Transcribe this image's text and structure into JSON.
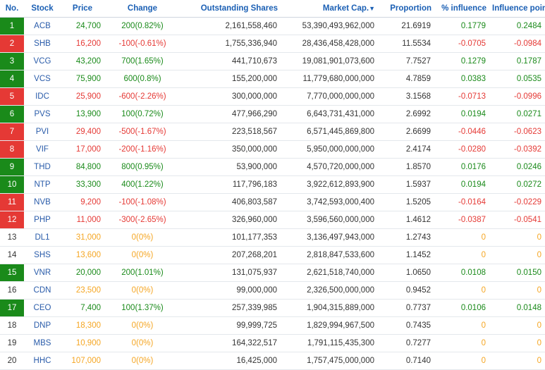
{
  "headers": {
    "no": "No.",
    "stock": "Stock",
    "price": "Price",
    "change": "Change",
    "shares": "Outstanding Shares",
    "market_cap": "Market Cap.",
    "sort_arrow": "▼",
    "proportion": "Proportion",
    "pct_influence": "% influence",
    "influence_points": "Influence points"
  },
  "colors": {
    "up": "#1a8a1a",
    "down": "#e53935",
    "ref": "#f5a623",
    "header": "#1a5fb4"
  },
  "rows": [
    {
      "no": "1",
      "stock": "ACB",
      "price": "24,700",
      "change": "200(0.82%)",
      "shares": "2,161,558,460",
      "market_cap": "53,390,493,962,000",
      "proportion": "21.6919",
      "pct_influence": "0.1779",
      "influence_points": "0.2484",
      "status": "up"
    },
    {
      "no": "2",
      "stock": "SHB",
      "price": "16,200",
      "change": "-100(-0.61%)",
      "shares": "1,755,336,940",
      "market_cap": "28,436,458,428,000",
      "proportion": "11.5534",
      "pct_influence": "-0.0705",
      "influence_points": "-0.0984",
      "status": "down"
    },
    {
      "no": "3",
      "stock": "VCG",
      "price": "43,200",
      "change": "700(1.65%)",
      "shares": "441,710,673",
      "market_cap": "19,081,901,073,600",
      "proportion": "7.7527",
      "pct_influence": "0.1279",
      "influence_points": "0.1787",
      "status": "up"
    },
    {
      "no": "4",
      "stock": "VCS",
      "price": "75,900",
      "change": "600(0.8%)",
      "shares": "155,200,000",
      "market_cap": "11,779,680,000,000",
      "proportion": "4.7859",
      "pct_influence": "0.0383",
      "influence_points": "0.0535",
      "status": "up"
    },
    {
      "no": "5",
      "stock": "IDC",
      "price": "25,900",
      "change": "-600(-2.26%)",
      "shares": "300,000,000",
      "market_cap": "7,770,000,000,000",
      "proportion": "3.1568",
      "pct_influence": "-0.0713",
      "influence_points": "-0.0996",
      "status": "down"
    },
    {
      "no": "6",
      "stock": "PVS",
      "price": "13,900",
      "change": "100(0.72%)",
      "shares": "477,966,290",
      "market_cap": "6,643,731,431,000",
      "proportion": "2.6992",
      "pct_influence": "0.0194",
      "influence_points": "0.0271",
      "status": "up"
    },
    {
      "no": "7",
      "stock": "PVI",
      "price": "29,400",
      "change": "-500(-1.67%)",
      "shares": "223,518,567",
      "market_cap": "6,571,445,869,800",
      "proportion": "2.6699",
      "pct_influence": "-0.0446",
      "influence_points": "-0.0623",
      "status": "down"
    },
    {
      "no": "8",
      "stock": "VIF",
      "price": "17,000",
      "change": "-200(-1.16%)",
      "shares": "350,000,000",
      "market_cap": "5,950,000,000,000",
      "proportion": "2.4174",
      "pct_influence": "-0.0280",
      "influence_points": "-0.0392",
      "status": "down"
    },
    {
      "no": "9",
      "stock": "THD",
      "price": "84,800",
      "change": "800(0.95%)",
      "shares": "53,900,000",
      "market_cap": "4,570,720,000,000",
      "proportion": "1.8570",
      "pct_influence": "0.0176",
      "influence_points": "0.0246",
      "status": "up"
    },
    {
      "no": "10",
      "stock": "NTP",
      "price": "33,300",
      "change": "400(1.22%)",
      "shares": "117,796,183",
      "market_cap": "3,922,612,893,900",
      "proportion": "1.5937",
      "pct_influence": "0.0194",
      "influence_points": "0.0272",
      "status": "up"
    },
    {
      "no": "11",
      "stock": "NVB",
      "price": "9,200",
      "change": "-100(-1.08%)",
      "shares": "406,803,587",
      "market_cap": "3,742,593,000,400",
      "proportion": "1.5205",
      "pct_influence": "-0.0164",
      "influence_points": "-0.0229",
      "status": "down"
    },
    {
      "no": "12",
      "stock": "PHP",
      "price": "11,000",
      "change": "-300(-2.65%)",
      "shares": "326,960,000",
      "market_cap": "3,596,560,000,000",
      "proportion": "1.4612",
      "pct_influence": "-0.0387",
      "influence_points": "-0.0541",
      "status": "down"
    },
    {
      "no": "13",
      "stock": "DL1",
      "price": "31,000",
      "change": "0(0%)",
      "shares": "101,177,353",
      "market_cap": "3,136,497,943,000",
      "proportion": "1.2743",
      "pct_influence": "0",
      "influence_points": "0",
      "status": "ref"
    },
    {
      "no": "14",
      "stock": "SHS",
      "price": "13,600",
      "change": "0(0%)",
      "shares": "207,268,201",
      "market_cap": "2,818,847,533,600",
      "proportion": "1.1452",
      "pct_influence": "0",
      "influence_points": "0",
      "status": "ref"
    },
    {
      "no": "15",
      "stock": "VNR",
      "price": "20,000",
      "change": "200(1.01%)",
      "shares": "131,075,937",
      "market_cap": "2,621,518,740,000",
      "proportion": "1.0650",
      "pct_influence": "0.0108",
      "influence_points": "0.0150",
      "status": "up"
    },
    {
      "no": "16",
      "stock": "CDN",
      "price": "23,500",
      "change": "0(0%)",
      "shares": "99,000,000",
      "market_cap": "2,326,500,000,000",
      "proportion": "0.9452",
      "pct_influence": "0",
      "influence_points": "0",
      "status": "ref"
    },
    {
      "no": "17",
      "stock": "CEO",
      "price": "7,400",
      "change": "100(1.37%)",
      "shares": "257,339,985",
      "market_cap": "1,904,315,889,000",
      "proportion": "0.7737",
      "pct_influence": "0.0106",
      "influence_points": "0.0148",
      "status": "up"
    },
    {
      "no": "18",
      "stock": "DNP",
      "price": "18,300",
      "change": "0(0%)",
      "shares": "99,999,725",
      "market_cap": "1,829,994,967,500",
      "proportion": "0.7435",
      "pct_influence": "0",
      "influence_points": "0",
      "status": "ref"
    },
    {
      "no": "19",
      "stock": "MBS",
      "price": "10,900",
      "change": "0(0%)",
      "shares": "164,322,517",
      "market_cap": "1,791,115,435,300",
      "proportion": "0.7277",
      "pct_influence": "0",
      "influence_points": "0",
      "status": "ref"
    },
    {
      "no": "20",
      "stock": "HHC",
      "price": "107,000",
      "change": "0(0%)",
      "shares": "16,425,000",
      "market_cap": "1,757,475,000,000",
      "proportion": "0.7140",
      "pct_influence": "0",
      "influence_points": "0",
      "status": "ref"
    }
  ]
}
